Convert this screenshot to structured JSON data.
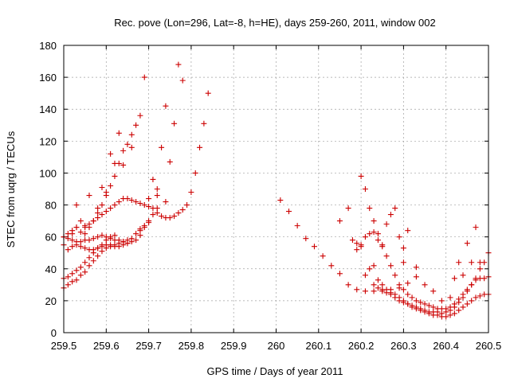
{
  "chart_data": {
    "type": "scatter",
    "title": "Rec. pove (Lon=296, Lat=-8, h=HE), days 259-260, 2011, window 002",
    "xlabel": "GPS time / Days of year 2011",
    "ylabel": "STEC from uqrg / TECUs",
    "xlim": [
      259.5,
      260.5
    ],
    "ylim": [
      0,
      180
    ],
    "x_ticks": [
      "259.5",
      "259.6",
      "259.7",
      "259.8",
      "259.9",
      "260",
      "260.1",
      "260.2",
      "260.3",
      "260.4",
      "260.5"
    ],
    "x_tick_values": [
      259.5,
      259.6,
      259.7,
      259.8,
      259.9,
      260.0,
      260.1,
      260.2,
      260.3,
      260.4,
      260.5
    ],
    "y_ticks": [
      "0",
      "20",
      "40",
      "60",
      "80",
      "100",
      "120",
      "140",
      "160",
      "180"
    ],
    "y_tick_values": [
      0,
      20,
      40,
      60,
      80,
      100,
      120,
      140,
      160,
      180
    ],
    "grid": true,
    "marker": "+",
    "color": "#cc0000",
    "points": [
      [
        259.5,
        28
      ],
      [
        259.51,
        30
      ],
      [
        259.52,
        32
      ],
      [
        259.53,
        33
      ],
      [
        259.54,
        36
      ],
      [
        259.55,
        38
      ],
      [
        259.56,
        42
      ],
      [
        259.57,
        45
      ],
      [
        259.58,
        48
      ],
      [
        259.59,
        51
      ],
      [
        259.6,
        53
      ],
      [
        259.61,
        54
      ],
      [
        259.62,
        55
      ],
      [
        259.63,
        56
      ],
      [
        259.64,
        57
      ],
      [
        259.65,
        58
      ],
      [
        259.5,
        34
      ],
      [
        259.51,
        35
      ],
      [
        259.52,
        37
      ],
      [
        259.53,
        39
      ],
      [
        259.54,
        41
      ],
      [
        259.55,
        44
      ],
      [
        259.56,
        47
      ],
      [
        259.57,
        50
      ],
      [
        259.58,
        53
      ],
      [
        259.59,
        55
      ],
      [
        259.6,
        58
      ],
      [
        259.61,
        60
      ],
      [
        259.62,
        61
      ],
      [
        259.5,
        55
      ],
      [
        259.51,
        52
      ],
      [
        259.52,
        54
      ],
      [
        259.53,
        55
      ],
      [
        259.54,
        54
      ],
      [
        259.55,
        53
      ],
      [
        259.56,
        52
      ],
      [
        259.57,
        52
      ],
      [
        259.58,
        53
      ],
      [
        259.59,
        54
      ],
      [
        259.6,
        55
      ],
      [
        259.61,
        55
      ],
      [
        259.62,
        54
      ],
      [
        259.63,
        54
      ],
      [
        259.64,
        55
      ],
      [
        259.65,
        56
      ],
      [
        259.66,
        59
      ],
      [
        259.67,
        62
      ],
      [
        259.68,
        64
      ],
      [
        259.69,
        66
      ],
      [
        259.7,
        69
      ],
      [
        259.5,
        60
      ],
      [
        259.51,
        59
      ],
      [
        259.52,
        58
      ],
      [
        259.53,
        57
      ],
      [
        259.54,
        57
      ],
      [
        259.55,
        58
      ],
      [
        259.56,
        58
      ],
      [
        259.57,
        59
      ],
      [
        259.58,
        60
      ],
      [
        259.59,
        61
      ],
      [
        259.6,
        60
      ],
      [
        259.61,
        59
      ],
      [
        259.62,
        58
      ],
      [
        259.63,
        58
      ],
      [
        259.64,
        57
      ],
      [
        259.65,
        56
      ],
      [
        259.66,
        57
      ],
      [
        259.67,
        58
      ],
      [
        259.68,
        61
      ],
      [
        259.69,
        67
      ],
      [
        259.7,
        70
      ],
      [
        259.71,
        74
      ],
      [
        259.72,
        75
      ],
      [
        259.73,
        73
      ],
      [
        259.74,
        72
      ],
      [
        259.75,
        72
      ],
      [
        259.76,
        73
      ],
      [
        259.77,
        75
      ],
      [
        259.78,
        77
      ],
      [
        259.79,
        80
      ],
      [
        259.8,
        88
      ],
      [
        259.81,
        100
      ],
      [
        259.82,
        116
      ],
      [
        259.83,
        131
      ],
      [
        259.84,
        150
      ],
      [
        259.5,
        60
      ],
      [
        259.51,
        62
      ],
      [
        259.52,
        64
      ],
      [
        259.53,
        66
      ],
      [
        259.54,
        63
      ],
      [
        259.55,
        66
      ],
      [
        259.56,
        68
      ],
      [
        259.57,
        70
      ],
      [
        259.58,
        72
      ],
      [
        259.59,
        74
      ],
      [
        259.6,
        76
      ],
      [
        259.61,
        78
      ],
      [
        259.62,
        80
      ],
      [
        259.63,
        82
      ],
      [
        259.64,
        84
      ],
      [
        259.65,
        84
      ],
      [
        259.66,
        83
      ],
      [
        259.67,
        82
      ],
      [
        259.68,
        81
      ],
      [
        259.69,
        80
      ],
      [
        259.7,
        79
      ],
      [
        259.71,
        78
      ],
      [
        259.72,
        78
      ],
      [
        259.52,
        62
      ],
      [
        259.53,
        66
      ],
      [
        259.54,
        70
      ],
      [
        259.55,
        67
      ],
      [
        259.56,
        66
      ],
      [
        259.57,
        70
      ],
      [
        259.58,
        75
      ],
      [
        259.59,
        80
      ],
      [
        259.6,
        86
      ],
      [
        259.61,
        92
      ],
      [
        259.62,
        98
      ],
      [
        259.63,
        106
      ],
      [
        259.64,
        114
      ],
      [
        259.65,
        118
      ],
      [
        259.66,
        124
      ],
      [
        259.67,
        130
      ],
      [
        259.68,
        136
      ],
      [
        259.69,
        160
      ],
      [
        259.53,
        80
      ],
      [
        259.55,
        62
      ],
      [
        259.56,
        86
      ],
      [
        259.58,
        78
      ],
      [
        259.59,
        91
      ],
      [
        259.6,
        88
      ],
      [
        259.61,
        112
      ],
      [
        259.62,
        106
      ],
      [
        259.63,
        125
      ],
      [
        259.64,
        105
      ],
      [
        259.66,
        116
      ],
      [
        259.68,
        65
      ],
      [
        259.7,
        84
      ],
      [
        259.71,
        96
      ],
      [
        259.72,
        90
      ],
      [
        259.73,
        116
      ],
      [
        259.74,
        142
      ],
      [
        259.75,
        107
      ],
      [
        259.76,
        131
      ],
      [
        259.77,
        168
      ],
      [
        259.78,
        158
      ],
      [
        259.74,
        82
      ],
      [
        259.72,
        86
      ],
      [
        260.01,
        83
      ],
      [
        260.03,
        76
      ],
      [
        260.05,
        67
      ],
      [
        260.07,
        59
      ],
      [
        260.09,
        54
      ],
      [
        260.11,
        48
      ],
      [
        260.13,
        42
      ],
      [
        260.15,
        37
      ],
      [
        260.17,
        30
      ],
      [
        260.19,
        27
      ],
      [
        260.21,
        26
      ],
      [
        260.23,
        26
      ],
      [
        260.25,
        26
      ],
      [
        260.27,
        27
      ],
      [
        260.29,
        28
      ],
      [
        260.31,
        31
      ],
      [
        260.33,
        35
      ],
      [
        260.15,
        70
      ],
      [
        260.17,
        78
      ],
      [
        260.18,
        58
      ],
      [
        260.19,
        56
      ],
      [
        260.2,
        55
      ],
      [
        260.21,
        60
      ],
      [
        260.22,
        62
      ],
      [
        260.23,
        63
      ],
      [
        260.24,
        58
      ],
      [
        260.25,
        54
      ],
      [
        260.26,
        68
      ],
      [
        260.27,
        74
      ],
      [
        260.28,
        78
      ],
      [
        260.29,
        60
      ],
      [
        260.3,
        53
      ],
      [
        260.19,
        52
      ],
      [
        260.2,
        54
      ],
      [
        260.21,
        36
      ],
      [
        260.22,
        40
      ],
      [
        260.23,
        42
      ],
      [
        260.24,
        33
      ],
      [
        260.25,
        30
      ],
      [
        260.26,
        27
      ],
      [
        260.27,
        25
      ],
      [
        260.28,
        24
      ],
      [
        260.29,
        22
      ],
      [
        260.3,
        20
      ],
      [
        260.31,
        18
      ],
      [
        260.32,
        16
      ],
      [
        260.33,
        15
      ],
      [
        260.34,
        14
      ],
      [
        260.35,
        13
      ],
      [
        260.36,
        12
      ],
      [
        260.37,
        11
      ],
      [
        260.38,
        11
      ],
      [
        260.39,
        10
      ],
      [
        260.4,
        10
      ],
      [
        260.41,
        11
      ],
      [
        260.42,
        12
      ],
      [
        260.43,
        14
      ],
      [
        260.44,
        16
      ],
      [
        260.45,
        18
      ],
      [
        260.46,
        20
      ],
      [
        260.47,
        22
      ],
      [
        260.48,
        23
      ],
      [
        260.49,
        24
      ],
      [
        260.5,
        24
      ],
      [
        260.2,
        98
      ],
      [
        260.21,
        90
      ],
      [
        260.22,
        78
      ],
      [
        260.23,
        70
      ],
      [
        260.24,
        62
      ],
      [
        260.25,
        55
      ],
      [
        260.26,
        48
      ],
      [
        260.27,
        42
      ],
      [
        260.28,
        36
      ],
      [
        260.29,
        30
      ],
      [
        260.3,
        27
      ],
      [
        260.31,
        24
      ],
      [
        260.32,
        22
      ],
      [
        260.33,
        20
      ],
      [
        260.34,
        19
      ],
      [
        260.35,
        18
      ],
      [
        260.36,
        17
      ],
      [
        260.37,
        16
      ],
      [
        260.38,
        15
      ],
      [
        260.39,
        15
      ],
      [
        260.4,
        15
      ],
      [
        260.41,
        16
      ],
      [
        260.42,
        18
      ],
      [
        260.43,
        21
      ],
      [
        260.44,
        24
      ],
      [
        260.45,
        27
      ],
      [
        260.46,
        30
      ],
      [
        260.47,
        33
      ],
      [
        260.48,
        34
      ],
      [
        260.49,
        34
      ],
      [
        260.5,
        35
      ],
      [
        260.23,
        30
      ],
      [
        260.24,
        28
      ],
      [
        260.25,
        27
      ],
      [
        260.26,
        25
      ],
      [
        260.27,
        24
      ],
      [
        260.28,
        22
      ],
      [
        260.29,
        20
      ],
      [
        260.3,
        19
      ],
      [
        260.31,
        18
      ],
      [
        260.32,
        17
      ],
      [
        260.33,
        16
      ],
      [
        260.34,
        15
      ],
      [
        260.35,
        14
      ],
      [
        260.36,
        13
      ],
      [
        260.37,
        13
      ],
      [
        260.38,
        13
      ],
      [
        260.39,
        12
      ],
      [
        260.4,
        13
      ],
      [
        260.41,
        14
      ],
      [
        260.42,
        16
      ],
      [
        260.43,
        19
      ],
      [
        260.44,
        22
      ],
      [
        260.45,
        26
      ],
      [
        260.46,
        30
      ],
      [
        260.47,
        34
      ],
      [
        260.48,
        40
      ],
      [
        260.49,
        44
      ],
      [
        260.5,
        50
      ],
      [
        260.3,
        44
      ],
      [
        260.31,
        64
      ],
      [
        260.33,
        41
      ],
      [
        260.35,
        30
      ],
      [
        260.37,
        26
      ],
      [
        260.39,
        20
      ],
      [
        260.41,
        22
      ],
      [
        260.43,
        44
      ],
      [
        260.45,
        56
      ],
      [
        260.46,
        44
      ],
      [
        260.47,
        66
      ],
      [
        260.48,
        44
      ],
      [
        260.44,
        36
      ],
      [
        260.42,
        34
      ]
    ]
  }
}
